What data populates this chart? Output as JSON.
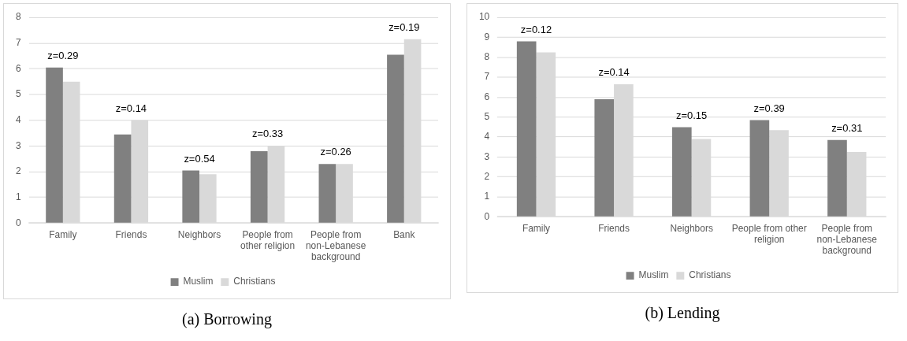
{
  "chart_data": [
    {
      "type": "bar",
      "title": "(a) Borrowing",
      "categories": [
        "Family",
        "Friends",
        "Neighbors",
        "People from other religion",
        "People from non-Lebanese background",
        "Bank"
      ],
      "series": [
        {
          "name": "Muslim",
          "color": "#808080",
          "values": [
            6.05,
            3.45,
            2.05,
            2.8,
            2.3,
            6.55
          ]
        },
        {
          "name": "Christians",
          "color": "#d9d9d9",
          "values": [
            5.5,
            4.0,
            1.9,
            3.0,
            2.3,
            7.15
          ]
        }
      ],
      "ylim": [
        0,
        8
      ],
      "yticks": [
        0,
        1,
        2,
        3,
        4,
        5,
        6,
        7,
        8
      ],
      "grid": "y",
      "legend": "bottom",
      "annotations": [
        {
          "text": "z=0.29",
          "x": "Family",
          "y": 6.05
        },
        {
          "text": "z=0.14",
          "x": "Friends",
          "y": 4.0
        },
        {
          "text": "z=0.54",
          "x": "Neighbors",
          "y": 2.05
        },
        {
          "text": "z=0.33",
          "x": "People from other religion",
          "y": 3.0
        },
        {
          "text": "z=0.26",
          "x": "People from non-Lebanese background",
          "y": 2.3
        },
        {
          "text": "z=0.19",
          "x": "Bank",
          "y": 7.15
        }
      ]
    },
    {
      "type": "bar",
      "title": "(b) Lending",
      "categories": [
        "Family",
        "Friends",
        "Neighbors",
        "People from other religion",
        "People from non-Lebanese background"
      ],
      "series": [
        {
          "name": "Muslim",
          "color": "#808080",
          "values": [
            8.8,
            5.9,
            4.5,
            4.85,
            3.85
          ]
        },
        {
          "name": "Christians",
          "color": "#d9d9d9",
          "values": [
            8.25,
            6.65,
            3.9,
            4.35,
            3.25
          ]
        }
      ],
      "ylim": [
        0,
        10
      ],
      "yticks": [
        0,
        1,
        2,
        3,
        4,
        5,
        6,
        7,
        8,
        9,
        10
      ],
      "grid": "y",
      "legend": "bottom",
      "annotations": [
        {
          "text": "z=0.12",
          "x": "Family",
          "y": 8.8
        },
        {
          "text": "z=0.14",
          "x": "Friends",
          "y": 6.65
        },
        {
          "text": "z=0.15",
          "x": "Neighbors",
          "y": 4.5
        },
        {
          "text": "z=0.39",
          "x": "People from other religion",
          "y": 4.85
        },
        {
          "text": "z=0.31",
          "x": "People from non-Lebanese background",
          "y": 3.85
        }
      ]
    }
  ]
}
